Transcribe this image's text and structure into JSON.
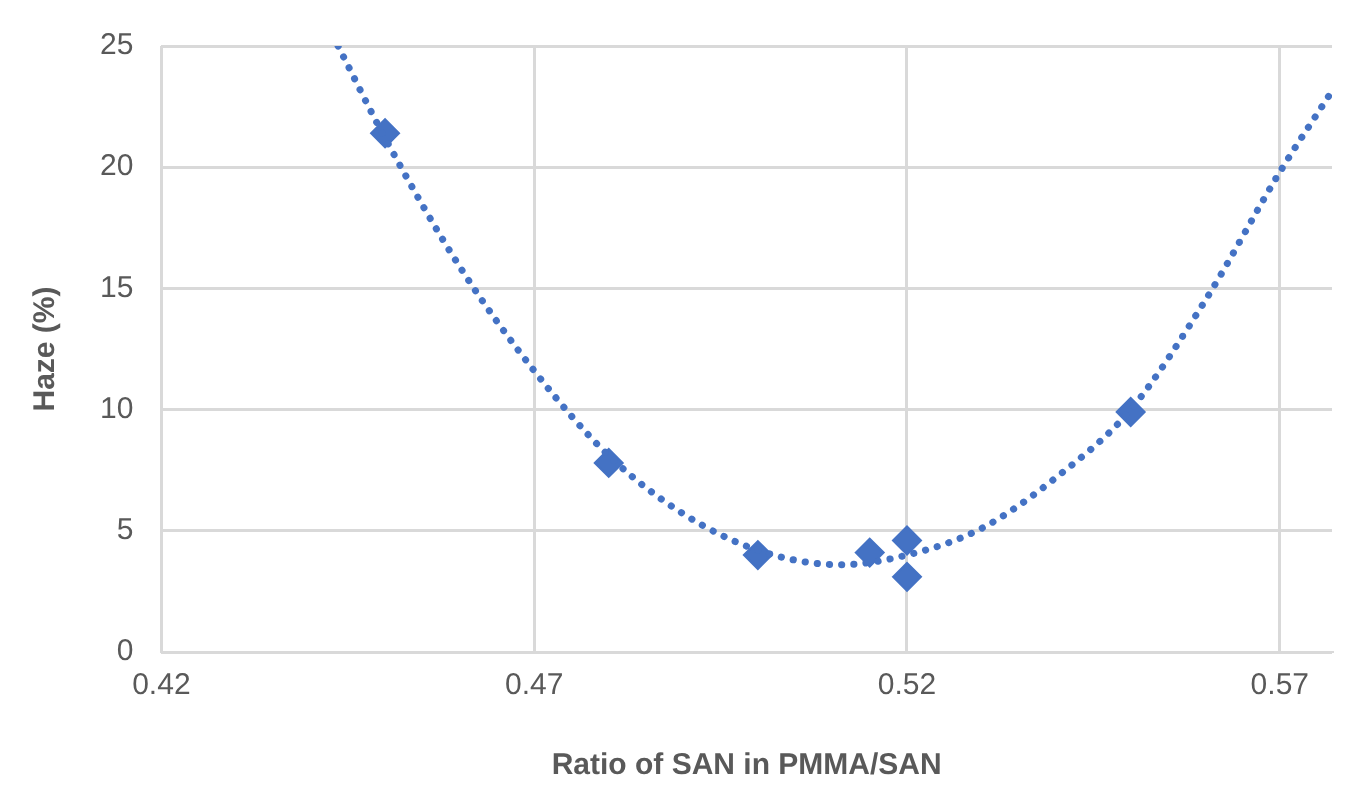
{
  "chart_data": {
    "type": "scatter",
    "xlabel": "Ratio of SAN in PMMA/SAN",
    "ylabel": "Haze (%)",
    "xlim": [
      0.42,
      0.577
    ],
    "xticks": [
      0.42,
      0.47,
      0.52,
      0.57
    ],
    "ylim": [
      0,
      25
    ],
    "yticks": [
      0,
      5,
      10,
      15,
      20,
      25
    ],
    "grid": true,
    "series": [
      {
        "type": "line",
        "color": "#4472c4",
        "line_style": "dotted",
        "marker": "none",
        "x": [
          0.4437,
          0.45,
          0.46,
          0.47,
          0.48,
          0.49,
          0.5,
          0.511,
          0.52,
          0.53,
          0.54,
          0.55,
          0.56,
          0.57,
          0.5767
        ],
        "values": [
          25,
          21.2,
          15.9,
          11.6,
          8.1,
          5.7,
          4.2,
          3.6,
          4.0,
          5.1,
          7.2,
          10.0,
          14.5,
          19.8,
          23.0
        ]
      },
      {
        "type": "scatter",
        "color": "#4472c4",
        "marker": "diamond",
        "x": [
          0.45,
          0.48,
          0.5,
          0.515,
          0.52,
          0.52,
          0.55
        ],
        "values": [
          21.4,
          7.8,
          4.0,
          4.1,
          4.6,
          3.1,
          9.9
        ]
      }
    ]
  }
}
